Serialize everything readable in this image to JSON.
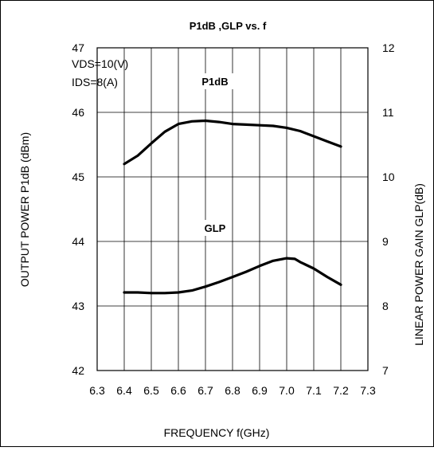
{
  "chart_data": {
    "type": "line",
    "title": "P1dB ,GLP vs. f",
    "xlabel": "FREQUENCY f(GHz)",
    "ylabel_left": "OUTPUT POWER P1dB (dBm)",
    "ylabel_right": "LINEAR POWER GAIN GLP(dB)",
    "xlim": [
      6.3,
      7.3
    ],
    "ylim_left": [
      42,
      47
    ],
    "ylim_right": [
      7,
      12
    ],
    "x_ticks": [
      "6.3",
      "6.4",
      "6.5",
      "6.6",
      "6.7",
      "6.8",
      "6.9",
      "7.0",
      "7.1",
      "7.2",
      "7.3"
    ],
    "y_ticks_left": [
      "42",
      "43",
      "44",
      "45",
      "46",
      "47"
    ],
    "y_ticks_right": [
      "7",
      "8",
      "9",
      "10",
      "11",
      "12"
    ],
    "grid": true,
    "annotations": [
      "VDS=10(V)",
      "IDS=8(A)"
    ],
    "series": [
      {
        "name": "P1dB",
        "axis": "left",
        "x": [
          6.4,
          6.45,
          6.5,
          6.55,
          6.6,
          6.65,
          6.7,
          6.75,
          6.8,
          6.85,
          6.9,
          6.95,
          7.0,
          7.05,
          7.1,
          7.15,
          7.2
        ],
        "values": [
          45.2,
          45.33,
          45.52,
          45.7,
          45.82,
          45.86,
          45.87,
          45.85,
          45.82,
          45.81,
          45.8,
          45.79,
          45.76,
          45.71,
          45.63,
          45.55,
          45.47
        ]
      },
      {
        "name": "GLP",
        "axis": "right",
        "x": [
          6.4,
          6.45,
          6.5,
          6.55,
          6.6,
          6.65,
          6.7,
          6.75,
          6.8,
          6.85,
          6.9,
          6.95,
          7.0,
          7.03,
          7.05,
          7.1,
          7.15,
          7.2
        ],
        "values": [
          8.21,
          8.21,
          8.2,
          8.2,
          8.21,
          8.24,
          8.3,
          8.37,
          8.45,
          8.53,
          8.62,
          8.7,
          8.74,
          8.73,
          8.68,
          8.58,
          8.45,
          8.33
        ]
      }
    ]
  },
  "colors": {
    "line": "#000000",
    "grid": "#000000",
    "background": "#ffffff"
  }
}
